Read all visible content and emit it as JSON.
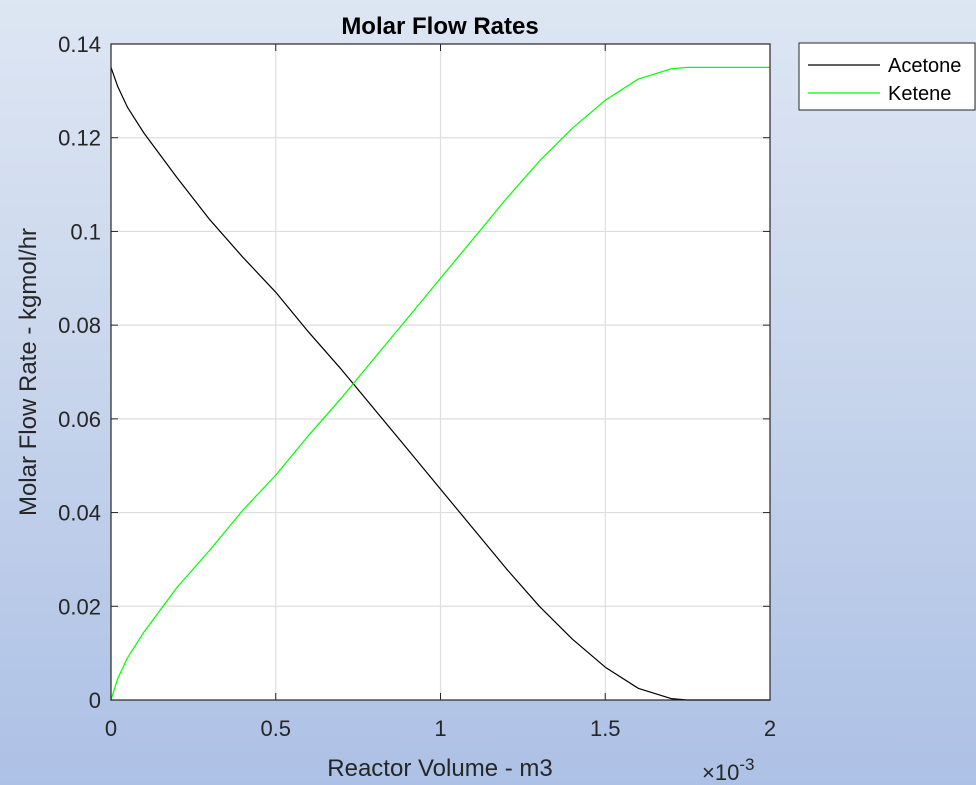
{
  "chart_data": {
    "type": "line",
    "title": "Molar Flow Rates",
    "xlabel": "Reactor Volume - m3",
    "ylabel": "Molar Flow Rate - kgmol/hr",
    "x_exponent_base": "×10",
    "x_exponent_power": "-3",
    "xlim": [
      0,
      2
    ],
    "ylim": [
      0,
      0.14
    ],
    "x_ticks": [
      0,
      0.5,
      1,
      1.5,
      2
    ],
    "x_tick_labels": [
      "0",
      "0.5",
      "1",
      "1.5",
      "2"
    ],
    "y_ticks": [
      0,
      0.02,
      0.04,
      0.06,
      0.08,
      0.1,
      0.12,
      0.14
    ],
    "y_tick_labels": [
      "0",
      "0.02",
      "0.04",
      "0.06",
      "0.08",
      "0.1",
      "0.12",
      "0.14"
    ],
    "grid": true,
    "legend_position": "outside-top-right",
    "series": [
      {
        "name": "Acetone",
        "color": "#000000",
        "x": [
          0,
          0.02,
          0.05,
          0.1,
          0.2,
          0.3,
          0.4,
          0.5,
          0.6,
          0.7,
          0.8,
          0.9,
          1.0,
          1.1,
          1.2,
          1.3,
          1.4,
          1.5,
          1.6,
          1.7,
          1.75,
          1.8,
          1.9,
          2.0
        ],
        "y": [
          0.135,
          0.131,
          0.1265,
          0.121,
          0.1115,
          0.1025,
          0.0945,
          0.087,
          0.0785,
          0.0705,
          0.062,
          0.0535,
          0.045,
          0.0365,
          0.028,
          0.02,
          0.013,
          0.007,
          0.0025,
          0.0003,
          0.0,
          0.0,
          0.0,
          0.0
        ]
      },
      {
        "name": "Ketene",
        "color": "#00ff00",
        "x": [
          0,
          0.02,
          0.05,
          0.1,
          0.2,
          0.3,
          0.4,
          0.5,
          0.6,
          0.7,
          0.8,
          0.9,
          1.0,
          1.1,
          1.2,
          1.3,
          1.4,
          1.5,
          1.6,
          1.7,
          1.75,
          1.8,
          1.9,
          2.0
        ],
        "y": [
          0.0,
          0.0045,
          0.009,
          0.0145,
          0.024,
          0.032,
          0.0405,
          0.048,
          0.0565,
          0.0645,
          0.073,
          0.0815,
          0.09,
          0.0985,
          0.107,
          0.115,
          0.122,
          0.128,
          0.1325,
          0.1347,
          0.135,
          0.135,
          0.135,
          0.135
        ]
      }
    ]
  }
}
